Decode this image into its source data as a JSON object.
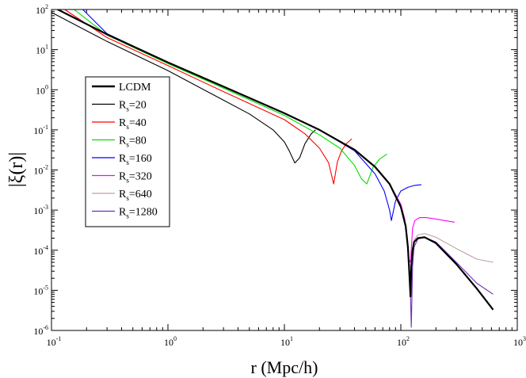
{
  "chart_data": {
    "type": "line",
    "title": "",
    "xlabel": "r (Mpc/h)",
    "ylabel": "|ξ(r)|",
    "xscale": "log",
    "yscale": "log",
    "xlim": [
      0.1,
      1000
    ],
    "ylim": [
      1e-06,
      100
    ],
    "grid": false,
    "legend_position": "upper-left",
    "x_ticks": [
      {
        "base": "10",
        "exp": "-1",
        "value": 0.1
      },
      {
        "base": "10",
        "exp": "0",
        "value": 1
      },
      {
        "base": "10",
        "exp": "1",
        "value": 10
      },
      {
        "base": "10",
        "exp": "2",
        "value": 100
      },
      {
        "base": "10",
        "exp": "3",
        "value": 1000
      }
    ],
    "y_ticks": [
      {
        "base": "10",
        "exp": "-6",
        "value": 1e-06
      },
      {
        "base": "10",
        "exp": "-5",
        "value": 1e-05
      },
      {
        "base": "10",
        "exp": "-4",
        "value": 0.0001
      },
      {
        "base": "10",
        "exp": "-3",
        "value": 0.001
      },
      {
        "base": "10",
        "exp": "-2",
        "value": 0.01
      },
      {
        "base": "10",
        "exp": "-1",
        "value": 0.1
      },
      {
        "base": "10",
        "exp": "0",
        "value": 1
      },
      {
        "base": "10",
        "exp": "1",
        "value": 10
      },
      {
        "base": "10",
        "exp": "2",
        "value": 100
      }
    ],
    "series": [
      {
        "name": "LCDM",
        "label_main": "LCDM",
        "label_sub": "",
        "label_rest": "",
        "color": "#000000",
        "bold": true,
        "x": [
          0.1,
          0.3,
          1,
          3,
          10,
          20,
          40,
          60,
          80,
          100,
          110,
          115,
          118,
          121,
          123,
          126,
          130,
          140,
          160,
          200,
          300,
          450,
          620
        ],
        "y": [
          120,
          24,
          4.8,
          1.2,
          0.26,
          0.1,
          0.032,
          0.012,
          0.0045,
          0.0012,
          0.0004,
          0.00012,
          3e-05,
          7e-06,
          4e-05,
          0.0001,
          0.00016,
          0.0002,
          0.00021,
          0.00015,
          4.5e-05,
          1.1e-05,
          3.3e-06
        ]
      },
      {
        "name": "Rs=20",
        "label_main": "R",
        "label_sub": "s",
        "label_rest": "=20",
        "color": "#000000",
        "bold": false,
        "x": [
          0.1,
          0.3,
          1,
          3,
          5,
          8,
          10,
          11,
          12.3,
          13.5,
          15,
          17,
          18.5
        ],
        "y": [
          85,
          16,
          3.0,
          0.55,
          0.25,
          0.1,
          0.05,
          0.03,
          0.015,
          0.02,
          0.045,
          0.08,
          0.1
        ]
      },
      {
        "name": "Rs=40",
        "label_main": "R",
        "label_sub": "s",
        "label_rest": "=40",
        "color": "#ff0000",
        "bold": false,
        "x": [
          0.13,
          0.3,
          1,
          3,
          10,
          15,
          20,
          24,
          26.5,
          28.5,
          31,
          34,
          38
        ],
        "y": [
          100,
          20,
          4.0,
          0.9,
          0.18,
          0.08,
          0.035,
          0.015,
          0.0045,
          0.016,
          0.03,
          0.045,
          0.06
        ]
      },
      {
        "name": "Rs=80",
        "label_main": "R",
        "label_sub": "s",
        "label_rest": "=80",
        "color": "#00dd00",
        "bold": false,
        "x": [
          0.15,
          0.3,
          1,
          3,
          10,
          20,
          30,
          40,
          46,
          51,
          54,
          58,
          66,
          76
        ],
        "y": [
          110,
          23,
          4.5,
          1.1,
          0.23,
          0.075,
          0.035,
          0.013,
          0.006,
          0.0045,
          0.007,
          0.012,
          0.019,
          0.025
        ]
      },
      {
        "name": "Rs=160",
        "label_main": "R",
        "label_sub": "s",
        "label_rest": "=160",
        "color": "#0000ff",
        "bold": false,
        "x": [
          0.18,
          0.3,
          1,
          3,
          10,
          20,
          40,
          60,
          72,
          80,
          83,
          90,
          100,
          115,
          130,
          150
        ],
        "y": [
          110,
          25,
          4.8,
          1.2,
          0.26,
          0.1,
          0.03,
          0.008,
          0.003,
          0.001,
          0.00055,
          0.0017,
          0.003,
          0.0037,
          0.0041,
          0.0043
        ]
      },
      {
        "name": "Rs=320",
        "label_main": "R",
        "label_sub": "s",
        "label_rest": "=320",
        "color": "#ff00ff",
        "bold": false,
        "x": [
          10,
          20,
          40,
          60,
          80,
          100,
          108,
          114,
          117,
          121,
          126,
          132,
          145,
          165,
          200,
          290
        ],
        "y": [
          0.26,
          0.1,
          0.031,
          0.012,
          0.0045,
          0.0014,
          0.0006,
          0.00018,
          6e-05,
          5e-05,
          0.00035,
          0.00055,
          0.00065,
          0.00065,
          0.0006,
          0.0005
        ]
      },
      {
        "name": "Rs=640",
        "label_main": "R",
        "label_sub": "s",
        "label_rest": "=640",
        "color": "#c0a0a0",
        "bold": false,
        "x": [
          100,
          110,
          116,
          120,
          124,
          130,
          140,
          160,
          200,
          300,
          450,
          620
        ],
        "y": [
          0.0012,
          0.0004,
          0.00011,
          1.5e-05,
          8e-05,
          0.00018,
          0.00024,
          0.00026,
          0.00021,
          0.00011,
          6e-05,
          5e-05
        ]
      },
      {
        "name": "Rs=1280",
        "label_main": "R",
        "label_sub": "s",
        "label_rest": "=1280",
        "color": "#7030b0",
        "bold": false,
        "x": [
          10,
          20,
          40,
          60,
          80,
          100,
          110,
          116,
          120,
          123,
          126,
          130,
          140,
          160,
          200,
          300,
          450,
          620
        ],
        "y": [
          0.26,
          0.1,
          0.032,
          0.012,
          0.0045,
          0.0012,
          0.0004,
          0.0001,
          2e-05,
          1.2e-06,
          4e-05,
          0.00012,
          0.00019,
          0.00021,
          0.00016,
          5e-05,
          1.5e-05,
          8e-06
        ]
      }
    ]
  }
}
